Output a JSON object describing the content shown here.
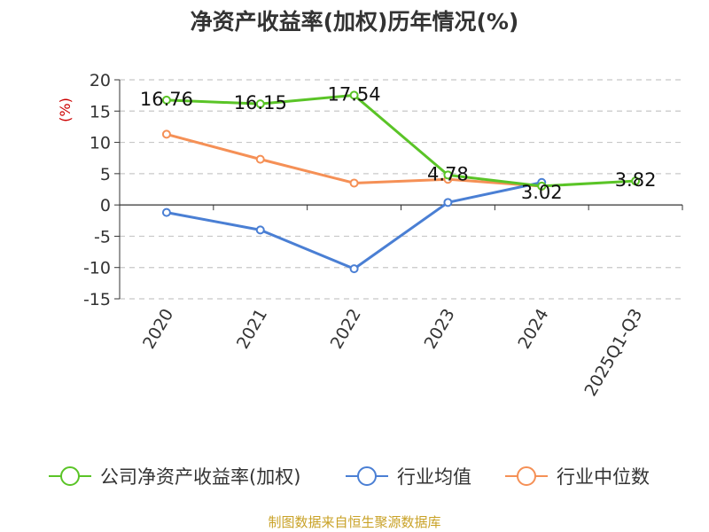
{
  "chart_data": {
    "type": "line",
    "title": "净资产收益率(加权)历年情况(%)",
    "ylabel": "(%)",
    "xlabel": "",
    "categories": [
      "2020",
      "2021",
      "2022",
      "2023",
      "2024",
      "2025Q1-Q3"
    ],
    "ylim": [
      -15,
      20
    ],
    "yticks": [
      20,
      15,
      10,
      5,
      0,
      -5,
      -10,
      -15
    ],
    "ytick_labels": [
      "20",
      "15",
      "10",
      "5",
      "0",
      "-5",
      "-10",
      "-15"
    ],
    "grid": true,
    "legend_position": "bottom",
    "series": [
      {
        "name": "公司净资产收益率(加权)",
        "color": "#5ac427",
        "values": [
          16.76,
          16.15,
          17.54,
          4.78,
          3.02,
          3.82
        ],
        "labels": [
          "16.76",
          "16.15",
          "17.54",
          "4.78",
          "3.02",
          "3.82"
        ]
      },
      {
        "name": "行业均值",
        "color": "#4a7fd4",
        "values": [
          -1.2,
          -4.0,
          -10.2,
          0.4,
          3.6,
          null
        ],
        "labels": []
      },
      {
        "name": "行业中位数",
        "color": "#f59056",
        "values": [
          11.3,
          7.3,
          3.5,
          4.1,
          3.0,
          null
        ],
        "labels": []
      }
    ],
    "source": "制图数据来自恒生聚源数据库"
  }
}
